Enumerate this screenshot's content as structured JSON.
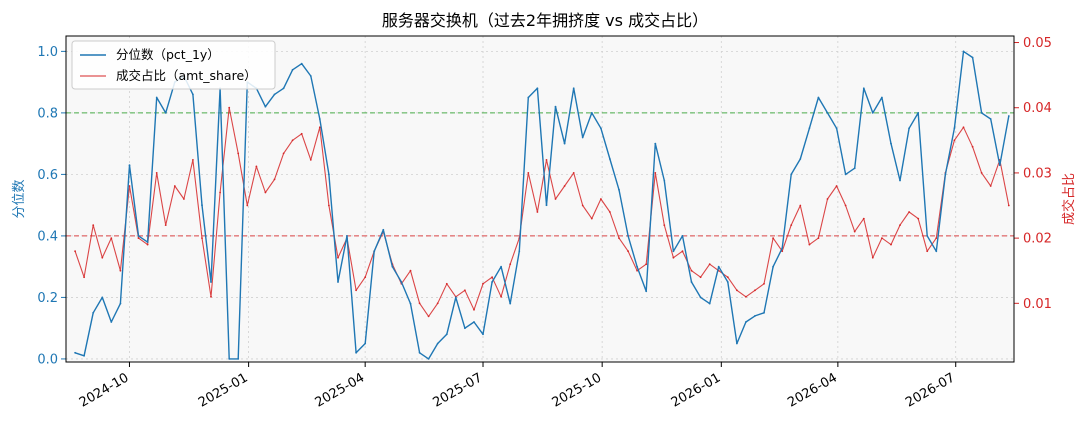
{
  "chart_data": {
    "type": "line",
    "title": "服务器交换机（过去2年拥挤度 vs 成交占比）",
    "xlabel": "",
    "ylabel_left": "分位数",
    "ylabel_right": "成交占比",
    "ylim_left": [
      -0.01,
      1.05
    ],
    "ylim_right": [
      0.001,
      0.051
    ],
    "x_start": "2024-08-13",
    "x_end": "2026-08-15",
    "x_ticks": [
      "2024-10",
      "2025-01",
      "2025-04",
      "2025-07",
      "2025-10",
      "2026-01",
      "2026-04",
      "2026-07"
    ],
    "y_ticks_left": [
      "0.0",
      "0.2",
      "0.4",
      "0.6",
      "0.8",
      "1.0"
    ],
    "y_ticks_right": [
      "0.01",
      "0.02",
      "0.03",
      "0.04",
      "0.05"
    ],
    "grid": true,
    "legend_position": "top-left",
    "reference_lines": [
      {
        "axis": "left",
        "value": 0.8,
        "color": "#2ca02c",
        "style": "dashed"
      },
      {
        "axis": "left",
        "value": 0.4,
        "color": "#d62728",
        "style": "dashed"
      }
    ],
    "colors": {
      "pct_1y": "#1f77b4",
      "amt_share": "#d62728"
    },
    "series": [
      {
        "name": "分位数（pct_1y）",
        "axis": "left",
        "x": [
          "2024-08-20",
          "2024-08-27",
          "2024-09-03",
          "2024-09-10",
          "2024-09-17",
          "2024-09-24",
          "2024-10-01",
          "2024-10-08",
          "2024-10-15",
          "2024-10-22",
          "2024-10-29",
          "2024-11-05",
          "2024-11-12",
          "2024-11-19",
          "2024-11-26",
          "2024-12-03",
          "2024-12-10",
          "2024-12-17",
          "2024-12-24",
          "2024-12-31",
          "2025-01-07",
          "2025-01-14",
          "2025-01-21",
          "2025-01-28",
          "2025-02-04",
          "2025-02-11",
          "2025-02-18",
          "2025-02-25",
          "2025-03-04",
          "2025-03-11",
          "2025-03-18",
          "2025-03-25",
          "2025-04-01",
          "2025-04-08",
          "2025-04-15",
          "2025-04-22",
          "2025-04-29",
          "2025-05-06",
          "2025-05-13",
          "2025-05-20",
          "2025-05-27",
          "2025-06-03",
          "2025-06-10",
          "2025-06-17",
          "2025-06-24",
          "2025-07-01",
          "2025-07-08",
          "2025-07-15",
          "2025-07-22",
          "2025-07-29",
          "2025-08-05",
          "2025-08-12",
          "2025-08-19",
          "2025-08-26",
          "2025-09-02",
          "2025-09-09",
          "2025-09-16",
          "2025-09-23",
          "2025-09-30",
          "2025-10-07",
          "2025-10-14",
          "2025-10-21",
          "2025-10-28",
          "2025-11-04",
          "2025-11-11",
          "2025-11-18",
          "2025-11-25",
          "2025-12-02",
          "2025-12-09",
          "2025-12-16",
          "2025-12-23",
          "2025-12-30",
          "2026-01-06",
          "2026-01-13",
          "2026-01-20",
          "2026-01-27",
          "2026-02-03",
          "2026-02-10",
          "2026-02-17",
          "2026-02-24",
          "2026-03-03",
          "2026-03-10",
          "2026-03-17",
          "2026-03-24",
          "2026-03-31",
          "2026-04-07",
          "2026-04-14",
          "2026-04-21",
          "2026-04-28",
          "2026-05-05",
          "2026-05-12",
          "2026-05-19",
          "2026-05-26",
          "2026-06-02",
          "2026-06-09",
          "2026-06-16",
          "2026-06-23",
          "2026-06-30",
          "2026-07-07",
          "2026-07-14",
          "2026-07-21",
          "2026-07-28",
          "2026-08-04",
          "2026-08-11"
        ],
        "values": [
          0.02,
          0.01,
          0.15,
          0.2,
          0.12,
          0.18,
          0.63,
          0.4,
          0.38,
          0.85,
          0.8,
          0.9,
          0.92,
          0.86,
          0.5,
          0.25,
          0.88,
          0.0,
          0.0,
          0.9,
          0.88,
          0.82,
          0.86,
          0.88,
          0.94,
          0.96,
          0.92,
          0.78,
          0.6,
          0.25,
          0.4,
          0.02,
          0.05,
          0.35,
          0.42,
          0.3,
          0.25,
          0.18,
          0.02,
          0.0,
          0.05,
          0.08,
          0.2,
          0.1,
          0.12,
          0.08,
          0.25,
          0.3,
          0.18,
          0.35,
          0.85,
          0.88,
          0.5,
          0.82,
          0.7,
          0.88,
          0.72,
          0.8,
          0.75,
          0.65,
          0.55,
          0.4,
          0.3,
          0.22,
          0.7,
          0.58,
          0.35,
          0.4,
          0.25,
          0.2,
          0.18,
          0.3,
          0.25,
          0.05,
          0.12,
          0.14,
          0.15,
          0.3,
          0.36,
          0.6,
          0.65,
          0.75,
          0.85,
          0.8,
          0.75,
          0.6,
          0.62,
          0.88,
          0.8,
          0.85,
          0.7,
          0.58,
          0.75,
          0.8,
          0.4,
          0.35,
          0.6,
          0.75,
          1.0,
          0.98,
          0.8,
          0.78,
          0.63,
          0.79
        ]
      },
      {
        "name": "成交占比（amt_share）",
        "axis": "right",
        "x": [
          "2024-08-20",
          "2024-08-27",
          "2024-09-03",
          "2024-09-10",
          "2024-09-17",
          "2024-09-24",
          "2024-10-01",
          "2024-10-08",
          "2024-10-15",
          "2024-10-22",
          "2024-10-29",
          "2024-11-05",
          "2024-11-12",
          "2024-11-19",
          "2024-11-26",
          "2024-12-03",
          "2024-12-10",
          "2024-12-17",
          "2024-12-24",
          "2024-12-31",
          "2025-01-07",
          "2025-01-14",
          "2025-01-21",
          "2025-01-28",
          "2025-02-04",
          "2025-02-11",
          "2025-02-18",
          "2025-02-25",
          "2025-03-04",
          "2025-03-11",
          "2025-03-18",
          "2025-03-25",
          "2025-04-01",
          "2025-04-08",
          "2025-04-15",
          "2025-04-22",
          "2025-04-29",
          "2025-05-06",
          "2025-05-13",
          "2025-05-20",
          "2025-05-27",
          "2025-06-03",
          "2025-06-10",
          "2025-06-17",
          "2025-06-24",
          "2025-07-01",
          "2025-07-08",
          "2025-07-15",
          "2025-07-22",
          "2025-07-29",
          "2025-08-05",
          "2025-08-12",
          "2025-08-19",
          "2025-08-26",
          "2025-09-02",
          "2025-09-09",
          "2025-09-16",
          "2025-09-23",
          "2025-09-30",
          "2025-10-07",
          "2025-10-14",
          "2025-10-21",
          "2025-10-28",
          "2025-11-04",
          "2025-11-11",
          "2025-11-18",
          "2025-11-25",
          "2025-12-02",
          "2025-12-09",
          "2025-12-16",
          "2025-12-23",
          "2025-12-30",
          "2026-01-06",
          "2026-01-13",
          "2026-01-20",
          "2026-01-27",
          "2026-02-03",
          "2026-02-10",
          "2026-02-17",
          "2026-02-24",
          "2026-03-03",
          "2026-03-10",
          "2026-03-17",
          "2026-03-24",
          "2026-03-31",
          "2026-04-07",
          "2026-04-14",
          "2026-04-21",
          "2026-04-28",
          "2026-05-05",
          "2026-05-12",
          "2026-05-19",
          "2026-05-26",
          "2026-06-02",
          "2026-06-09",
          "2026-06-16",
          "2026-06-23",
          "2026-06-30",
          "2026-07-07",
          "2026-07-14",
          "2026-07-21",
          "2026-07-28",
          "2026-08-04",
          "2026-08-11"
        ],
        "values": [
          0.018,
          0.014,
          0.022,
          0.017,
          0.02,
          0.015,
          0.028,
          0.02,
          0.019,
          0.03,
          0.022,
          0.028,
          0.026,
          0.032,
          0.02,
          0.011,
          0.027,
          0.04,
          0.033,
          0.025,
          0.031,
          0.027,
          0.029,
          0.033,
          0.035,
          0.036,
          0.032,
          0.037,
          0.025,
          0.017,
          0.02,
          0.012,
          0.014,
          0.018,
          0.021,
          0.016,
          0.013,
          0.015,
          0.01,
          0.008,
          0.01,
          0.013,
          0.011,
          0.012,
          0.009,
          0.013,
          0.014,
          0.011,
          0.016,
          0.02,
          0.03,
          0.024,
          0.032,
          0.026,
          0.028,
          0.03,
          0.025,
          0.023,
          0.026,
          0.024,
          0.02,
          0.018,
          0.015,
          0.016,
          0.03,
          0.022,
          0.017,
          0.018,
          0.015,
          0.014,
          0.016,
          0.015,
          0.014,
          0.012,
          0.011,
          0.012,
          0.013,
          0.02,
          0.018,
          0.022,
          0.025,
          0.019,
          0.02,
          0.026,
          0.028,
          0.025,
          0.021,
          0.023,
          0.017,
          0.02,
          0.019,
          0.022,
          0.024,
          0.023,
          0.018,
          0.02,
          0.03,
          0.035,
          0.037,
          0.034,
          0.03,
          0.028,
          0.032,
          0.025
        ]
      }
    ]
  }
}
